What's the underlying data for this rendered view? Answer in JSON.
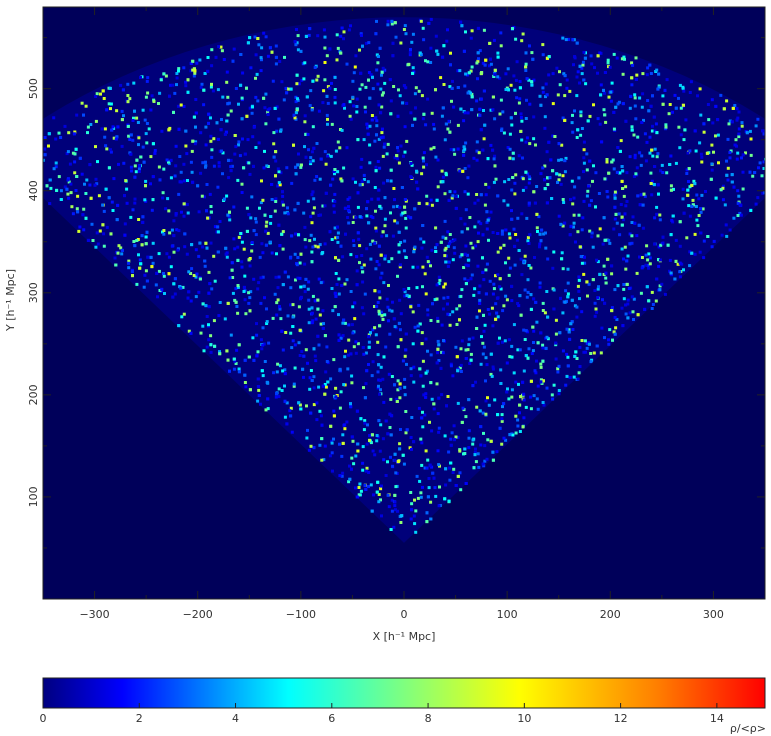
{
  "chart_data": {
    "type": "heatmap",
    "title": "",
    "xlabel": "X [h⁻¹ Mpc]",
    "ylabel": "Y [h⁻¹ Mpc]",
    "xlim": [
      -350,
      350
    ],
    "ylim": [
      0,
      580
    ],
    "x_ticks": [
      -300,
      -200,
      -100,
      0,
      100,
      200,
      300
    ],
    "y_ticks": [
      100,
      200,
      300,
      400,
      500
    ],
    "x_tick_labels": [
      "−300",
      "−200",
      "−100",
      "0",
      "100",
      "200",
      "300"
    ],
    "y_tick_labels": [
      "100",
      "200",
      "300",
      "400",
      "500"
    ],
    "background_color": "#00005a",
    "survey_wedge": {
      "apex": [
        0,
        55
      ],
      "edge_angle_deg": 42,
      "outer_radius": 515,
      "description": "density field of galaxy distribution within a fan-shaped survey slice"
    },
    "colorbar": {
      "label": "ρ/<ρ>",
      "range": [
        0,
        15
      ],
      "ticks": [
        0,
        2,
        4,
        6,
        8,
        10,
        12,
        14
      ],
      "tick_labels": [
        "0",
        "2",
        "4",
        "6",
        "8",
        "10",
        "12",
        "14"
      ],
      "colormap": "jet",
      "colors": [
        "#000080",
        "#0000ff",
        "#00ffff",
        "#7fff7f",
        "#ffff00",
        "#ff7f00",
        "#ff0000"
      ]
    },
    "grid": false
  }
}
